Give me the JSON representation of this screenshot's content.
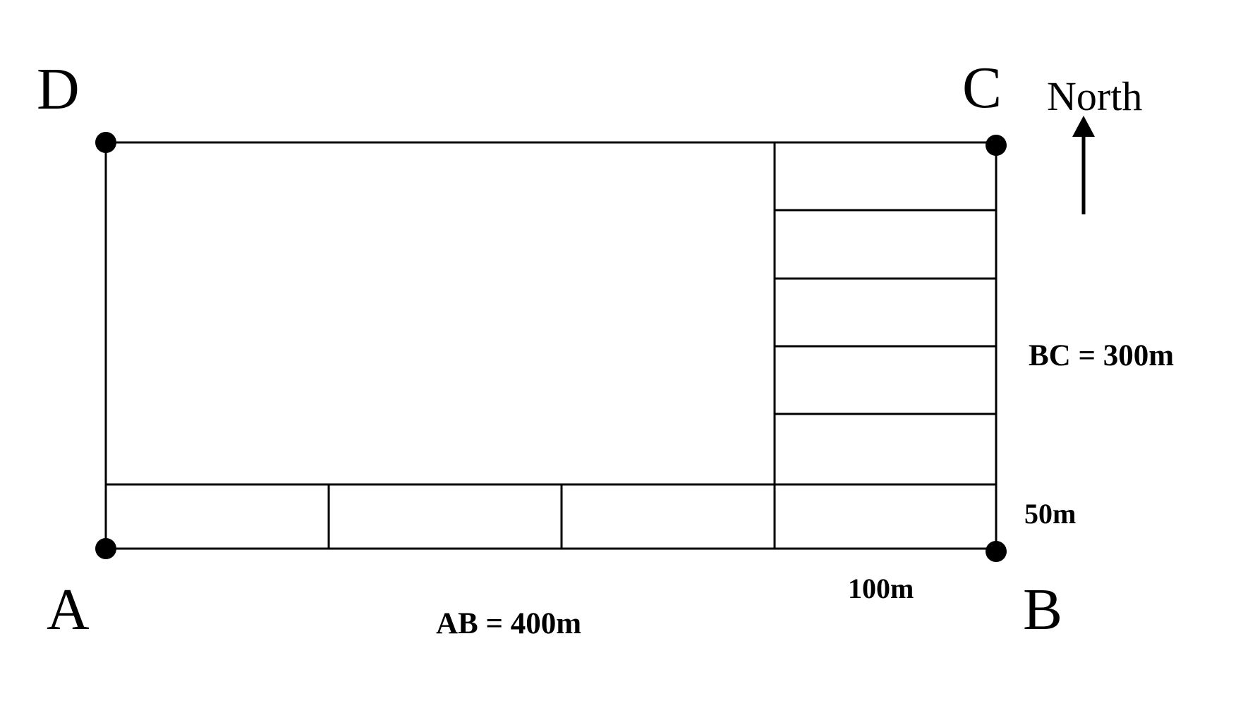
{
  "vertices": {
    "a": "A",
    "b": "B",
    "c": "C",
    "d": "D"
  },
  "compass": {
    "label": "North",
    "icon": "north-arrow-icon"
  },
  "dimensions": {
    "ab": "AB = 400m",
    "bc": "BC = 300m",
    "strip_height": "50m",
    "strip_width": "100m"
  },
  "colors": {
    "ink": "#000000",
    "background": "#ffffff"
  }
}
